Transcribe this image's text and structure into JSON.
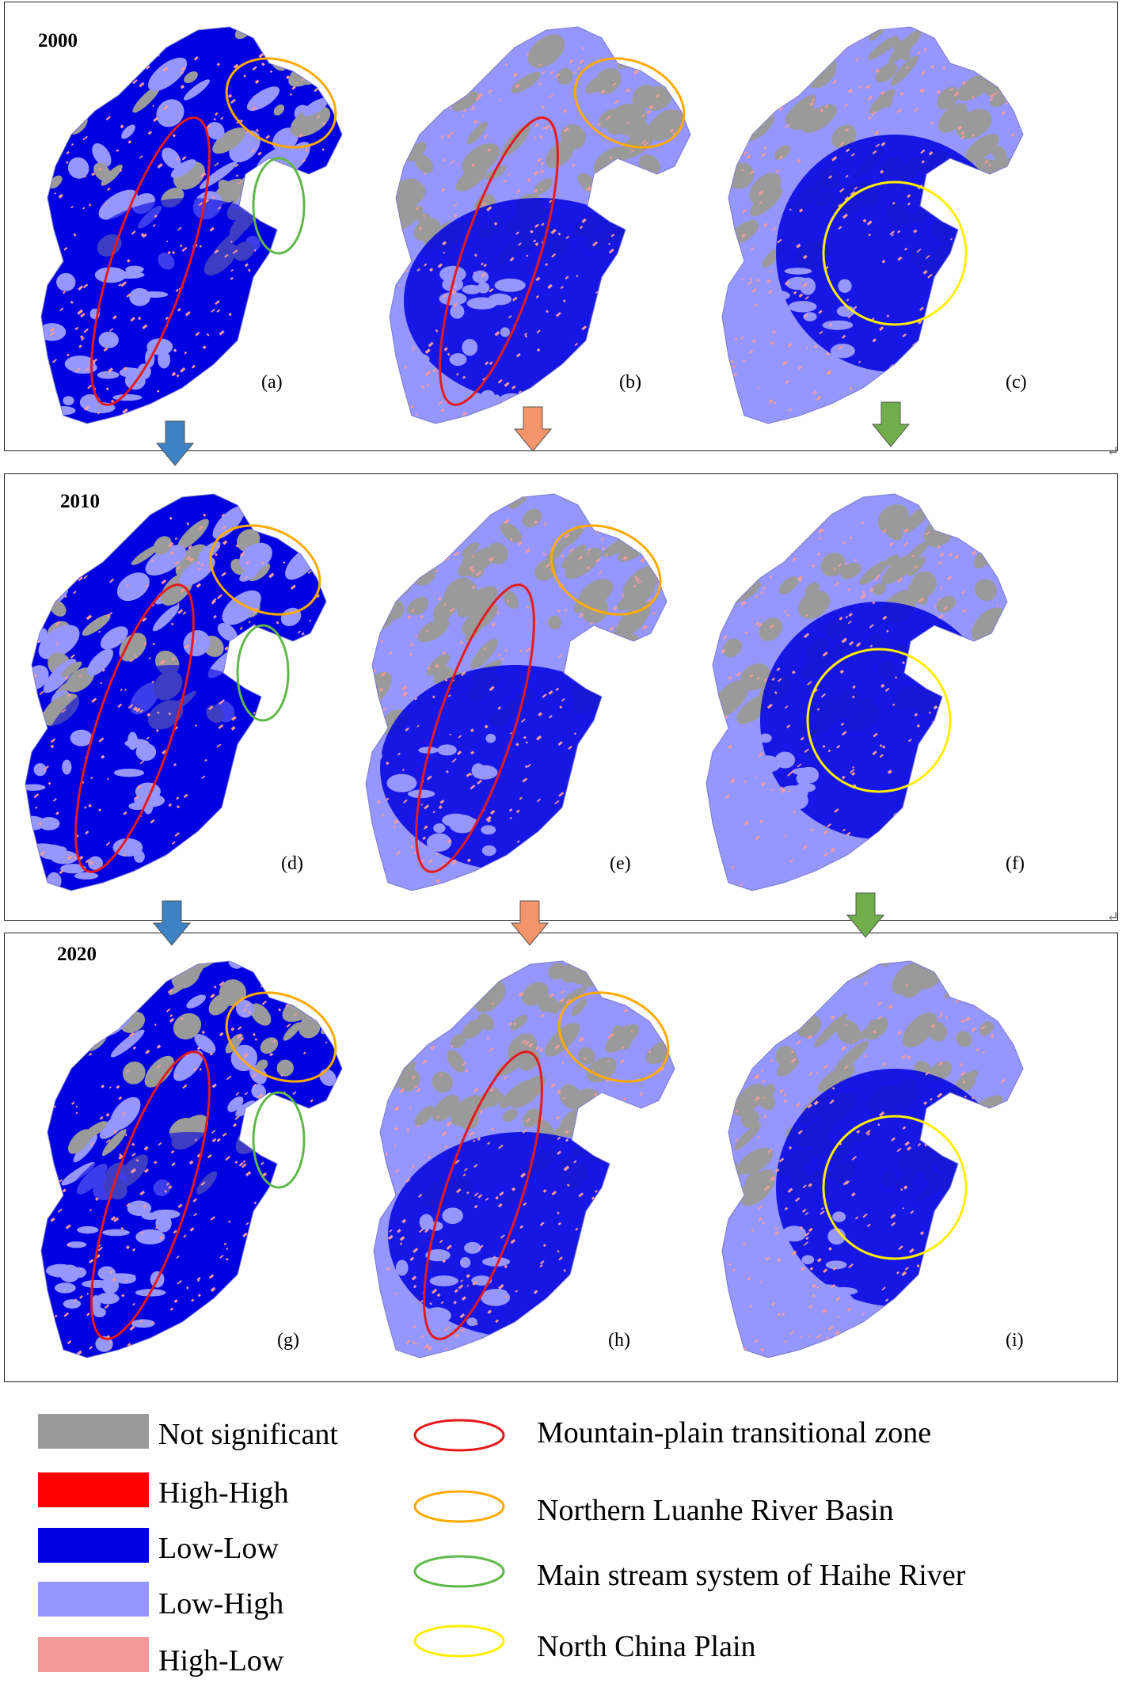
{
  "years": [
    "2000",
    "2010",
    "2020"
  ],
  "panel_labels": [
    "(a)",
    "(b)",
    "(c)",
    "(d)",
    "(e)",
    "(f)",
    "(g)",
    "(h)",
    "(i)"
  ],
  "colors": {
    "not_significant": "#9a9a9a",
    "high_high": "#ff0000",
    "low_low": "#0000e0",
    "low_high": "#9696ff",
    "high_low": "#f59a9a",
    "mountain_plain": "#e41a1c",
    "luanhe": "#ffaa00",
    "haihe": "#5fb84a",
    "north_china_plain": "#ffee00",
    "arrow_blue": "#3d82c4",
    "arrow_orange": "#f4946a",
    "arrow_green": "#6fae4a"
  },
  "legend": {
    "categories": [
      {
        "label": "Not significant",
        "color_key": "not_significant"
      },
      {
        "label": "High-High",
        "color_key": "high_high"
      },
      {
        "label": "Low-Low",
        "color_key": "low_low"
      },
      {
        "label": "Low-High",
        "color_key": "low_high"
      },
      {
        "label": "High-Low",
        "color_key": "high_low"
      }
    ],
    "zones": [
      {
        "label": "Mountain-plain transitional zone",
        "color_key": "mountain_plain"
      },
      {
        "label": "Northern Luanhe River Basin",
        "color_key": "luanhe"
      },
      {
        "label": "Main stream system of Haihe River",
        "color_key": "haihe"
      },
      {
        "label": "North China Plain",
        "color_key": "north_china_plain"
      }
    ]
  },
  "return_mark": "↵"
}
